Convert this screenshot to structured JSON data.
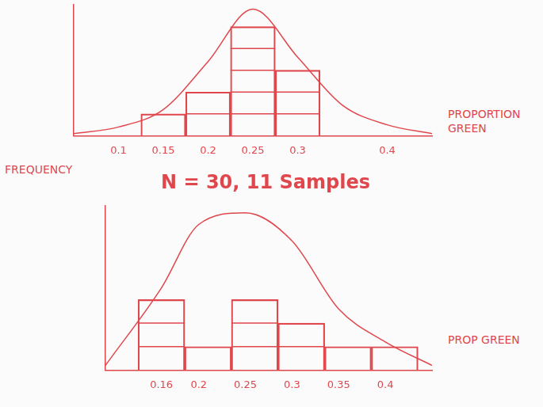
{
  "chart_data": [
    {
      "type": "histogram",
      "bins": [
        0.125,
        0.175,
        0.225,
        0.275,
        0.325
      ],
      "values": [
        1,
        2,
        5,
        3
      ],
      "color": "#e0474c",
      "curve": {
        "type": "line",
        "x": [
          0.05,
          0.1,
          0.15,
          0.2,
          0.25,
          0.3,
          0.35,
          0.4,
          0.45
        ],
        "values": [
          0.1,
          0.4,
          1.2,
          3.4,
          5.8,
          3.6,
          1.4,
          0.5,
          0.1
        ]
      },
      "x_label": "PROPORTION GREEN",
      "xlim": [
        0.05,
        0.45
      ],
      "xticks": [
        0.1,
        0.15,
        0.2,
        0.25,
        0.3,
        0.4
      ],
      "ylim": [
        0,
        6
      ],
      "tick_labels": "x",
      "grid": false
    },
    {
      "type": "histogram",
      "title": "N = 30, 11 Samples",
      "bins": [
        0.135,
        0.185,
        0.235,
        0.285,
        0.335,
        0.385,
        0.435
      ],
      "values": [
        3,
        1,
        3,
        2,
        1,
        1
      ],
      "color": "#e0474c",
      "curve": {
        "type": "line",
        "x": [
          0.1,
          0.16,
          0.2,
          0.25,
          0.3,
          0.35,
          0.4,
          0.45
        ],
        "values": [
          0.2,
          3.5,
          6.2,
          6.7,
          5.5,
          2.6,
          1.2,
          0.2
        ]
      },
      "x_label": "PROP GREEN",
      "y_label": "FREQUENCY",
      "xlim": [
        0.1,
        0.45
      ],
      "xticks": [
        0.16,
        0.2,
        0.25,
        0.3,
        0.35,
        0.4
      ],
      "ylim": [
        0,
        7
      ],
      "tick_labels": "x",
      "grid": false
    }
  ]
}
